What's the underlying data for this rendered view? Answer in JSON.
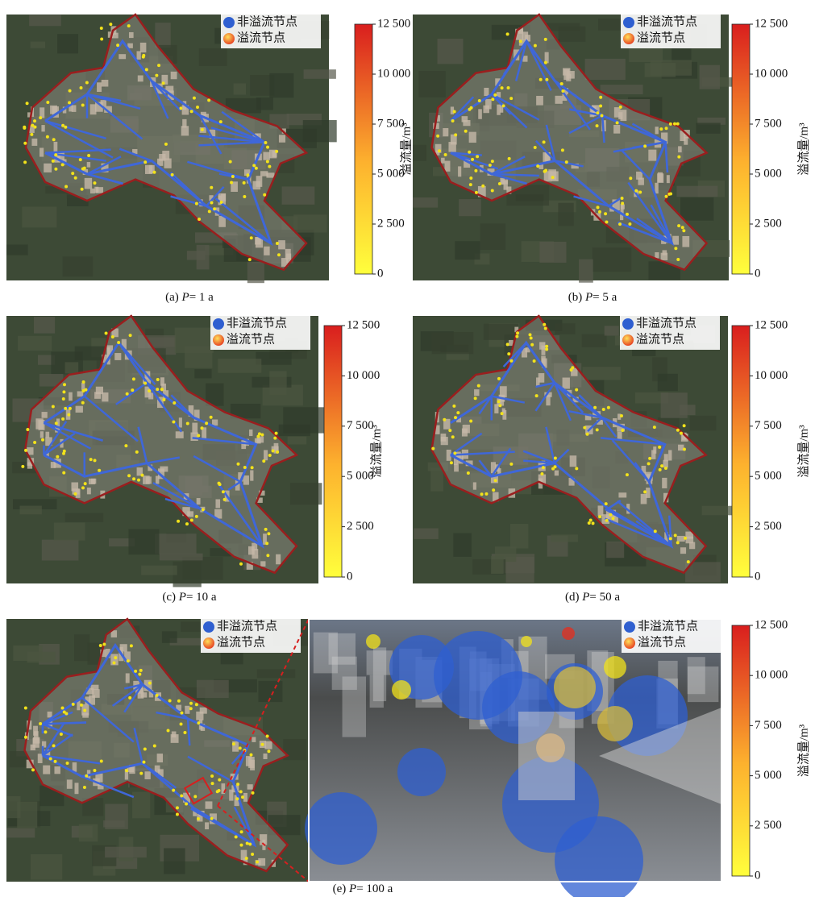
{
  "legend": {
    "items": [
      "非溢流节点",
      "溢流节点"
    ]
  },
  "colorbar": {
    "label": "溢流量/m³",
    "lim": [
      0,
      12500
    ],
    "ticks": [
      0,
      {
        "value": 2500,
        "label": "2 500"
      },
      {
        "value": 5000,
        "label": "5 000"
      },
      {
        "value": 7500,
        "label": "7 500"
      },
      {
        "value": 10000,
        "label": "10 000"
      },
      {
        "value": 12500,
        "label": "12 500"
      }
    ]
  },
  "panels": [
    {
      "caption": {
        "label": "(a)",
        "symbol": "P",
        "text": "= 1 a"
      }
    },
    {
      "caption": {
        "label": "(b)",
        "symbol": "P",
        "text": "= 5 a"
      }
    },
    {
      "caption": {
        "label": "(c)",
        "symbol": "P",
        "text": "= 10 a"
      }
    },
    {
      "caption": {
        "label": "(d)",
        "symbol": "P",
        "text": "= 50 a"
      }
    },
    {
      "caption": {
        "label": "(e)",
        "symbol": "P",
        "text": "= 100 a"
      }
    }
  ]
}
